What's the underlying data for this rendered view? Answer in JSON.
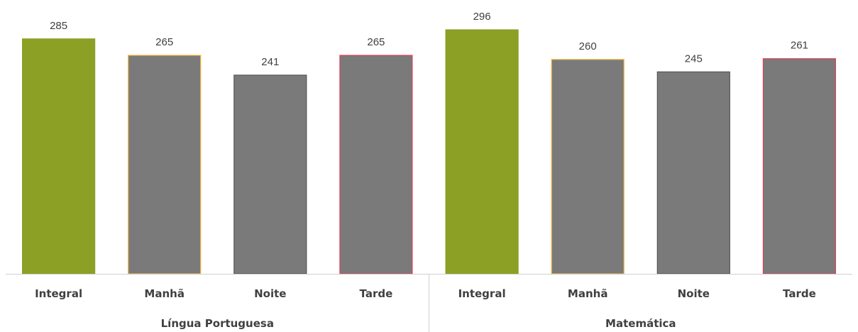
{
  "chart_data": {
    "type": "bar",
    "title": "",
    "xlabel": "",
    "ylabel": "",
    "ylim": [
      0,
      300
    ],
    "grid": false,
    "groups": [
      {
        "label": "Língua Portuguesa",
        "bars": [
          {
            "category": "Integral",
            "value": 285,
            "value_label": "285",
            "color": "#8BA025",
            "edge": "#8BA025"
          },
          {
            "category": "Manhã",
            "value": 265,
            "value_label": "265",
            "color": "#7A7A7A",
            "edge": "#F2B33D"
          },
          {
            "category": "Noite",
            "value": 241,
            "value_label": "241",
            "color": "#7A7A7A",
            "edge": "#555555"
          },
          {
            "category": "Tarde",
            "value": 265,
            "value_label": "265",
            "color": "#7A7A7A",
            "edge": "#E0405A"
          }
        ]
      },
      {
        "label": "Matemática",
        "bars": [
          {
            "category": "Integral",
            "value": 296,
            "value_label": "296",
            "color": "#8BA025",
            "edge": "#8BA025"
          },
          {
            "category": "Manhã",
            "value": 260,
            "value_label": "260",
            "color": "#7A7A7A",
            "edge": "#F2B33D"
          },
          {
            "category": "Noite",
            "value": 245,
            "value_label": "245",
            "color": "#7A7A7A",
            "edge": "#555555"
          },
          {
            "category": "Tarde",
            "value": 261,
            "value_label": "261",
            "color": "#7A7A7A",
            "edge": "#E0405A"
          }
        ]
      }
    ]
  }
}
